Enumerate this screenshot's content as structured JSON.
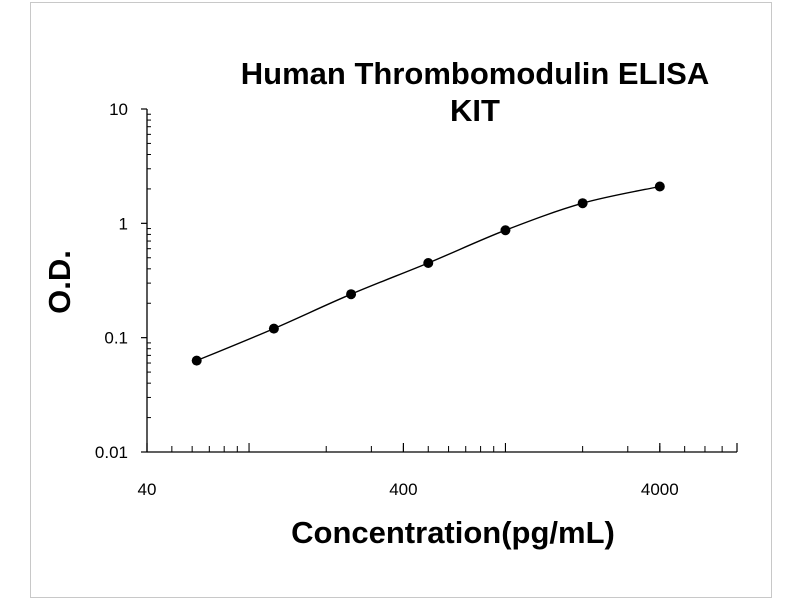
{
  "chart_data": {
    "type": "line",
    "title_lines": [
      "Human Thrombomodulin ELISA",
      "KIT"
    ],
    "xlabel": "Concentration(pg/mL)",
    "ylabel": "O.D.",
    "x_scale": "log",
    "y_scale": "log",
    "xlim": [
      40,
      8000
    ],
    "ylim": [
      0.01,
      10
    ],
    "x_ticks": [
      40,
      400,
      4000
    ],
    "x_tick_labels": [
      "40",
      "400",
      "4000"
    ],
    "y_ticks": [
      0.01,
      0.1,
      1,
      10
    ],
    "y_tick_labels": [
      "0.01",
      "0.1",
      "1",
      "10"
    ],
    "grid": false,
    "legend": "none",
    "series": [
      {
        "x": [
          62.5,
          125,
          250,
          500,
          1000,
          2000,
          4000
        ],
        "y": [
          0.063,
          0.12,
          0.24,
          0.45,
          0.87,
          1.5,
          2.1
        ],
        "marker": "circle",
        "line": "smooth",
        "color": "#000000"
      }
    ]
  }
}
